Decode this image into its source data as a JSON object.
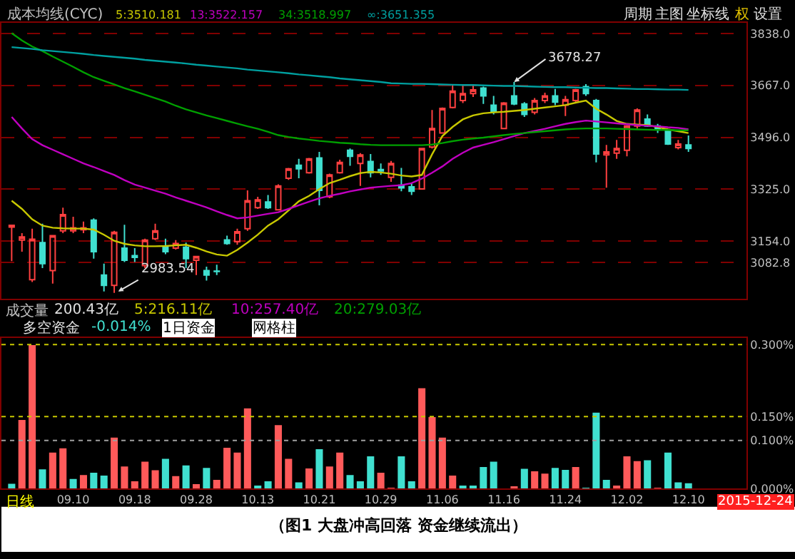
{
  "chart_data": [
    {
      "type": "candlestick",
      "title": "成本均线(CYC)",
      "categories": [
        null,
        null,
        null,
        null,
        null,
        null,
        "09.10",
        null,
        null,
        null,
        null,
        null,
        "09.18",
        null,
        null,
        null,
        null,
        null,
        "09.28",
        null,
        null,
        null,
        null,
        null,
        "10.13",
        null,
        null,
        null,
        null,
        null,
        "10.21",
        null,
        null,
        null,
        null,
        null,
        "10.29",
        null,
        null,
        null,
        null,
        null,
        "11.06",
        null,
        null,
        null,
        null,
        null,
        "11.16",
        null,
        null,
        null,
        null,
        null,
        "11.24",
        null,
        null,
        null,
        null,
        null,
        "12.02",
        null,
        null,
        null,
        null,
        null,
        "12.10"
      ],
      "ohlc": [
        [
          3200,
          3207,
          3088,
          3206
        ],
        [
          3157,
          3180,
          3119,
          3168
        ],
        [
          3027,
          3195,
          3019,
          3160
        ],
        [
          3149,
          3211,
          3065,
          3080
        ],
        [
          3057,
          3172,
          3014,
          3172
        ],
        [
          3188,
          3264,
          3180,
          3241
        ],
        [
          3188,
          3234,
          3180,
          3198
        ],
        [
          3191,
          3218,
          3180,
          3198
        ],
        [
          3223,
          3229,
          3096,
          3119
        ],
        [
          3042,
          3080,
          2988,
          3008
        ],
        [
          3008,
          3188,
          2983.54,
          3183
        ],
        [
          3131,
          3208,
          3085,
          3091
        ],
        [
          3106,
          3131,
          3085,
          3100
        ],
        [
          3073,
          3162,
          3065,
          3157
        ],
        [
          3162,
          3211,
          3157,
          3188
        ],
        [
          3137,
          3162,
          3111,
          3119
        ],
        [
          3131,
          3157,
          3126,
          3146
        ],
        [
          3134,
          3149,
          3065,
          3096
        ],
        [
          3091,
          3103,
          3042,
          3103
        ],
        [
          3057,
          3070,
          3024,
          3042
        ],
        [
          3055,
          3076,
          3042,
          3054
        ],
        [
          3158,
          3172,
          3142,
          3146
        ],
        [
          3152,
          3195,
          3142,
          3185
        ],
        [
          3195,
          3321,
          3188,
          3287
        ],
        [
          3264,
          3300,
          3260,
          3290
        ],
        [
          3283,
          3306,
          3260,
          3264
        ],
        [
          3257,
          3341,
          3257,
          3336
        ],
        [
          3361,
          3395,
          3356,
          3392
        ],
        [
          3404,
          3425,
          3361,
          3392
        ],
        [
          3379,
          3428,
          3376,
          3425
        ],
        [
          3428,
          3448,
          3272,
          3321
        ],
        [
          3300,
          3376,
          3295,
          3372
        ],
        [
          3379,
          3422,
          3376,
          3413
        ],
        [
          3453,
          3459,
          3402,
          3433
        ],
        [
          3410,
          3444,
          3336,
          3438
        ],
        [
          3416,
          3441,
          3364,
          3379
        ],
        [
          3390,
          3410,
          3372,
          3385
        ],
        [
          3364,
          3418,
          3349,
          3410
        ],
        [
          3338,
          3395,
          3318,
          3329
        ],
        [
          3333,
          3346,
          3306,
          3318
        ],
        [
          3326,
          3459,
          3326,
          3459
        ],
        [
          3464,
          3586,
          3459,
          3525
        ],
        [
          3510,
          3594,
          3510,
          3591
        ],
        [
          3594,
          3671,
          3591,
          3648
        ],
        [
          3617,
          3671,
          3609,
          3640
        ],
        [
          3640,
          3667,
          3629,
          3652
        ],
        [
          3658,
          3663,
          3606,
          3632
        ],
        [
          3602,
          3632,
          3571,
          3582
        ],
        [
          3525,
          3612,
          3525,
          3609
        ],
        [
          3632,
          3678.27,
          3602,
          3606
        ],
        [
          3606,
          3612,
          3563,
          3571
        ],
        [
          3578,
          3625,
          3571,
          3617
        ],
        [
          3617,
          3643,
          3609,
          3632
        ],
        [
          3632,
          3655,
          3602,
          3612
        ],
        [
          3602,
          3632,
          3566,
          3620
        ],
        [
          3617,
          3655,
          3612,
          3652
        ],
        [
          3663,
          3671,
          3632,
          3640
        ],
        [
          3617,
          3622,
          3413,
          3441
        ],
        [
          3438,
          3471,
          3330,
          3448
        ],
        [
          3444,
          3487,
          3425,
          3459
        ],
        [
          3453,
          3536,
          3433,
          3533
        ],
        [
          3533,
          3591,
          3525,
          3586
        ],
        [
          3556,
          3571,
          3530,
          3533
        ],
        [
          3533,
          3540,
          3510,
          3525
        ],
        [
          3517,
          3520,
          3471,
          3474
        ],
        [
          3462,
          3487,
          3456,
          3474
        ],
        [
          3471,
          3502,
          3448,
          3459
        ]
      ],
      "series": [
        {
          "name": "5:3510.181",
          "type": "line",
          "color": "#c8c800",
          "values": [
            3287,
            3260,
            3226,
            3205,
            3198,
            3196,
            3195,
            3195,
            3192,
            3175,
            3155,
            3145,
            3140,
            3137,
            3137,
            3138,
            3140,
            3142,
            3132,
            3120,
            3110,
            3106,
            3125,
            3149,
            3175,
            3205,
            3226,
            3255,
            3285,
            3303,
            3325,
            3345,
            3356,
            3368,
            3378,
            3382,
            3380,
            3376,
            3370,
            3367,
            3372,
            3440,
            3500,
            3530,
            3555,
            3568,
            3575,
            3578,
            3580,
            3583,
            3586,
            3590,
            3594,
            3598,
            3602,
            3610,
            3617,
            3590,
            3571,
            3550,
            3540,
            3538,
            3536,
            3530,
            3522,
            3516,
            3510
          ]
        },
        {
          "name": "13:3522.157",
          "type": "line",
          "color": "#c000c0",
          "values": [
            3563,
            3525,
            3490,
            3470,
            3455,
            3440,
            3425,
            3410,
            3398,
            3385,
            3372,
            3355,
            3340,
            3330,
            3320,
            3310,
            3298,
            3287,
            3276,
            3265,
            3252,
            3240,
            3229,
            3232,
            3238,
            3244,
            3249,
            3260,
            3272,
            3284,
            3295,
            3303,
            3310,
            3318,
            3324,
            3330,
            3333,
            3336,
            3338,
            3345,
            3360,
            3379,
            3400,
            3425,
            3445,
            3462,
            3471,
            3480,
            3490,
            3500,
            3510,
            3517,
            3524,
            3532,
            3540,
            3546,
            3551,
            3548,
            3545,
            3542,
            3539,
            3536,
            3534,
            3532,
            3529,
            3527,
            3522
          ]
        },
        {
          "name": "34:3518.997",
          "type": "line",
          "color": "#00a000",
          "values": [
            3839,
            3815,
            3795,
            3780,
            3762,
            3745,
            3728,
            3710,
            3694,
            3682,
            3670,
            3658,
            3647,
            3636,
            3625,
            3614,
            3600,
            3588,
            3578,
            3568,
            3559,
            3550,
            3541,
            3532,
            3524,
            3514,
            3503,
            3497,
            3492,
            3488,
            3484,
            3481,
            3478,
            3476,
            3473,
            3471,
            3470,
            3470,
            3470,
            3470,
            3470,
            3472,
            3477,
            3483,
            3488,
            3492,
            3495,
            3499,
            3503,
            3507,
            3510,
            3513,
            3516,
            3519,
            3522,
            3524,
            3525,
            3525,
            3525,
            3524,
            3523,
            3522,
            3521,
            3520,
            3520,
            3519,
            3519
          ]
        },
        {
          "name": "∞:3651.355",
          "type": "line",
          "color": "#00a0a0",
          "values": [
            3793,
            3790,
            3787,
            3783,
            3780,
            3777,
            3774,
            3771,
            3767,
            3764,
            3761,
            3758,
            3755,
            3751,
            3748,
            3745,
            3742,
            3739,
            3735,
            3732,
            3729,
            3726,
            3723,
            3719,
            3716,
            3713,
            3710,
            3707,
            3703,
            3700,
            3697,
            3694,
            3690,
            3687,
            3684,
            3681,
            3678,
            3674,
            3673,
            3672,
            3672,
            3671,
            3670,
            3669,
            3668,
            3668,
            3667,
            3666,
            3665,
            3665,
            3664,
            3663,
            3662,
            3661,
            3661,
            3660,
            3659,
            3658,
            3658,
            3657,
            3656,
            3655,
            3655,
            3654,
            3653,
            3653,
            3652
          ]
        }
      ],
      "ylim": [
        2965,
        3874
      ],
      "yticks": [
        {
          "value": 3082.8,
          "label": "3082.8"
        },
        {
          "value": 3154,
          "label": "3154.0"
        },
        {
          "value": 3325,
          "label": "3325.0"
        },
        {
          "value": 3496,
          "label": "3496.0"
        },
        {
          "value": 3667,
          "label": "3667.0"
        },
        {
          "value": 3838,
          "label": "3838.0"
        }
      ],
      "grid": "y",
      "tick_labels": "y",
      "annotations": [
        {
          "text": "3678.27",
          "y": 3678.27
        },
        "2983.54",
        "周期",
        "主图",
        "坐标线",
        "权",
        "设置"
      ]
    },
    {
      "type": "bar",
      "categories": [
        null,
        null,
        null,
        null,
        null,
        null,
        "09.10",
        null,
        null,
        null,
        null,
        null,
        "09.18",
        null,
        null,
        null,
        null,
        null,
        "09.28",
        null,
        null,
        null,
        null,
        null,
        "10.13",
        null,
        null,
        null,
        null,
        null,
        "10.21",
        null,
        null,
        null,
        null,
        null,
        "10.29",
        null,
        null,
        null,
        null,
        null,
        "11.06",
        null,
        null,
        null,
        null,
        null,
        "11.16",
        null,
        null,
        null,
        null,
        null,
        "11.24",
        null,
        null,
        null,
        null,
        null,
        "12.02",
        null,
        null,
        null,
        null,
        null,
        "12.10"
      ],
      "values": [
        0.01,
        0.143,
        0.299,
        0.04,
        0.075,
        0.084,
        0.02,
        0.028,
        0.033,
        0.027,
        0.106,
        0.046,
        0.015,
        0.056,
        0.038,
        0.062,
        0.026,
        0.048,
        0.009,
        0.043,
        0.018,
        0.085,
        0.075,
        0.167,
        0.006,
        0.015,
        0.132,
        0.062,
        0.013,
        0.042,
        0.082,
        0.046,
        0.075,
        0.028,
        0.015,
        0.067,
        0.033,
        0.001,
        0.067,
        0.015,
        0.209,
        0.149,
        0.106,
        0.027,
        0.006,
        0.006,
        0.045,
        0.056,
        0,
        0.004,
        0.041,
        0.036,
        0.031,
        0.043,
        0.039,
        0.045,
        0.001,
        0.158,
        0.018,
        0.006,
        0.067,
        0.057,
        0.059,
        0.001,
        0.075,
        0.013,
        0.011
      ],
      "colors": [
        "#40e0d0",
        "#ff5a5a",
        "#ff5a5a",
        "#40e0d0",
        "#ff5a5a",
        "#ff5a5a",
        "#40e0d0",
        "#ff5a5a",
        "#40e0d0",
        "#40e0d0",
        "#ff5a5a",
        "#ff5a5a",
        "#ff5a5a",
        "#ff5a5a",
        "#ff5a5a",
        "#40e0d0",
        "#ff5a5a",
        "#40e0d0",
        "#ff5a5a",
        "#40e0d0",
        "#ff5a5a",
        "#ff5a5a",
        "#ff5a5a",
        "#ff5a5a",
        "#40e0d0",
        "#40e0d0",
        "#ff5a5a",
        "#ff5a5a",
        "#40e0d0",
        "#ff5a5a",
        "#40e0d0",
        "#ff5a5a",
        "#ff5a5a",
        "#40e0d0",
        "#40e0d0",
        "#40e0d0",
        "#ff5a5a",
        "#ff5a5a",
        "#40e0d0",
        "#40e0d0",
        "#ff5a5a",
        "#ff5a5a",
        "#ff5a5a",
        "#ff5a5a",
        "#40e0d0",
        "#40e0d0",
        "#40e0d0",
        "#40e0d0",
        "#40e0d0",
        "#ff5a5a",
        "#40e0d0",
        "#ff5a5a",
        "#ff5a5a",
        "#40e0d0",
        "#40e0d0",
        "#ff5a5a",
        "#40e0d0",
        "#40e0d0",
        "#40e0d0",
        "#ff5a5a",
        "#ff5a5a",
        "#ff5a5a",
        "#40e0d0",
        "#ff5a5a",
        "#40e0d0",
        "#40e0d0",
        "#40e0d0"
      ],
      "ylim": [
        0,
        0.314
      ],
      "yticks": [
        {
          "value": 0,
          "label": "0.000%"
        },
        {
          "value": 0.1,
          "label": "0.100%"
        },
        {
          "value": 0.15,
          "label": "0.150%"
        },
        {
          "value": 0.3,
          "label": "0.300%"
        }
      ],
      "ref_lines": [
        {
          "axis": "y",
          "value": 0.3,
          "color": "#c8c800",
          "line_style": "dotted"
        },
        {
          "axis": "y",
          "value": 0.15,
          "color": "#c8c800",
          "line_style": "dotted"
        },
        {
          "axis": "y",
          "value": 0.1,
          "color": "#a0a0a0",
          "line_style": "dotted"
        }
      ],
      "annotations": [
        "成交量",
        "200.43亿",
        "5:216.11亿",
        "10:257.40亿",
        "20:279.03亿",
        "多空资金",
        "-0.014%",
        "1日资金",
        "网格柱",
        "日线",
        "2015-12-24",
        "（图1 大盘冲高回落 资金继续流出）"
      ]
    }
  ]
}
